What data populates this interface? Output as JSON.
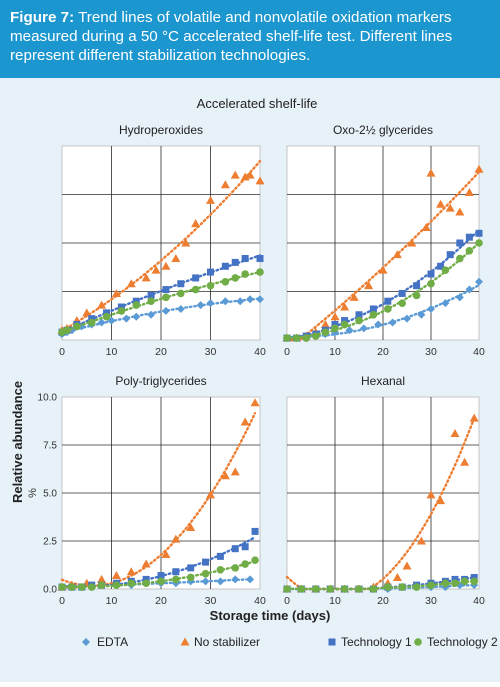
{
  "caption": {
    "label": "Figure 7:",
    "text": " Trend lines of volatile and nonvolatile oxidation markers measured during a 50 °C accelerated shelf-life test. Different lines represent different stabilization technologies."
  },
  "figure_title": "Accelerated shelf-life",
  "shared": {
    "ylabel": "Relative abundance",
    "xlabel": "Storage time (days)",
    "unit_label": "%"
  },
  "legend": [
    {
      "name": "EDTA",
      "color": "#5b9bd5",
      "marker": "diamond"
    },
    {
      "name": "No stabilizer",
      "color": "#ed7d31",
      "marker": "triangle"
    },
    {
      "name": "Technology 1",
      "color": "#4472c4",
      "marker": "square"
    },
    {
      "name": "Technology 2",
      "color": "#70ad47",
      "marker": "circle"
    }
  ],
  "chart_data": [
    {
      "type": "scatter",
      "title": "Hydroperoxides",
      "xlim": [
        0,
        40
      ],
      "xticks": [
        "0",
        "10",
        "20",
        "30",
        "40"
      ],
      "ylim": [
        0,
        10
      ],
      "yticks": [],
      "grid": true,
      "trendline": "dotted",
      "series": [
        {
          "name": "EDTA",
          "x": [
            0,
            1,
            2,
            4,
            6,
            8,
            10,
            13,
            15,
            18,
            21,
            24,
            28,
            30,
            33,
            36,
            38,
            40
          ],
          "y": [
            0.3,
            0.4,
            0.5,
            0.7,
            0.8,
            0.9,
            1.0,
            1.1,
            1.2,
            1.3,
            1.5,
            1.6,
            1.8,
            1.9,
            2.0,
            2.0,
            2.1,
            2.1
          ]
        },
        {
          "name": "No stabilizer",
          "x": [
            0,
            1,
            3,
            5,
            8,
            11,
            14,
            17,
            19,
            21,
            23,
            25,
            27,
            30,
            33,
            35,
            37,
            38,
            40
          ],
          "y": [
            0.5,
            0.6,
            1.0,
            1.4,
            1.8,
            2.4,
            2.9,
            3.2,
            3.6,
            3.8,
            4.2,
            5.0,
            6.0,
            7.2,
            8.0,
            8.5,
            8.4,
            8.5,
            8.2
          ]
        },
        {
          "name": "Technology 1",
          "x": [
            0,
            1,
            3,
            6,
            9,
            12,
            15,
            18,
            21,
            24,
            27,
            30,
            33,
            35,
            37,
            40
          ],
          "y": [
            0.4,
            0.5,
            0.8,
            1.1,
            1.4,
            1.7,
            2.0,
            2.3,
            2.6,
            2.9,
            3.2,
            3.5,
            3.8,
            4.0,
            4.2,
            4.2
          ]
        },
        {
          "name": "Technology 2",
          "x": [
            0,
            1,
            3,
            6,
            9,
            12,
            15,
            18,
            21,
            24,
            27,
            30,
            33,
            35,
            37,
            40
          ],
          "y": [
            0.4,
            0.5,
            0.7,
            0.9,
            1.2,
            1.5,
            1.8,
            2.0,
            2.2,
            2.4,
            2.6,
            2.8,
            3.0,
            3.2,
            3.4,
            3.5
          ]
        }
      ]
    },
    {
      "type": "scatter",
      "title": "Oxo-2½ glycerides",
      "xlim": [
        0,
        40
      ],
      "xticks": [
        "0",
        "10",
        "20",
        "30",
        "40"
      ],
      "ylim": [
        0,
        10
      ],
      "yticks": [],
      "grid": true,
      "trendline": "dotted",
      "series": [
        {
          "name": "EDTA",
          "x": [
            0,
            2,
            4,
            6,
            8,
            10,
            13,
            16,
            19,
            22,
            25,
            28,
            30,
            33,
            36,
            38,
            40
          ],
          "y": [
            0.1,
            0.1,
            0.1,
            0.2,
            0.3,
            0.4,
            0.5,
            0.6,
            0.8,
            0.9,
            1.1,
            1.3,
            1.6,
            1.9,
            2.2,
            2.6,
            3.0
          ]
        },
        {
          "name": "No stabilizer",
          "x": [
            0,
            2,
            4,
            6,
            8,
            10,
            12,
            14,
            17,
            20,
            23,
            26,
            29,
            30,
            32,
            34,
            36,
            38,
            40
          ],
          "y": [
            0.1,
            0.1,
            0.2,
            0.4,
            0.8,
            1.2,
            1.7,
            2.2,
            2.8,
            3.6,
            4.4,
            5.0,
            5.8,
            8.6,
            7.0,
            6.8,
            6.6,
            7.6,
            8.8
          ]
        },
        {
          "name": "Technology 1",
          "x": [
            0,
            2,
            4,
            6,
            8,
            10,
            12,
            15,
            18,
            21,
            24,
            27,
            30,
            32,
            34,
            36,
            38,
            40
          ],
          "y": [
            0.1,
            0.1,
            0.2,
            0.3,
            0.5,
            0.8,
            1.0,
            1.3,
            1.6,
            2.0,
            2.4,
            2.8,
            3.4,
            3.8,
            4.4,
            5.0,
            5.3,
            5.5
          ]
        },
        {
          "name": "Technology 2",
          "x": [
            0,
            2,
            4,
            6,
            8,
            10,
            12,
            15,
            18,
            21,
            24,
            27,
            30,
            33,
            36,
            38,
            40
          ],
          "y": [
            0.1,
            0.1,
            0.1,
            0.2,
            0.4,
            0.6,
            0.8,
            1.0,
            1.3,
            1.6,
            1.9,
            2.3,
            2.9,
            3.6,
            4.2,
            4.6,
            5.0
          ]
        }
      ]
    },
    {
      "type": "scatter",
      "title": "Poly-triglycerides",
      "xlim": [
        0,
        40
      ],
      "xticks": [
        "0",
        "10",
        "20",
        "30",
        "40"
      ],
      "ylim": [
        0,
        10
      ],
      "yticks": [
        "0.0",
        "2.5",
        "5.0",
        "7.5",
        "10.0"
      ],
      "ylabel": "%",
      "grid": true,
      "trendline": "dotted",
      "series": [
        {
          "name": "EDTA",
          "x": [
            0,
            2,
            4,
            6,
            8,
            11,
            14,
            17,
            20,
            23,
            26,
            29,
            32,
            35,
            38
          ],
          "y": [
            0.1,
            0.1,
            0.1,
            0.1,
            0.2,
            0.2,
            0.2,
            0.3,
            0.3,
            0.3,
            0.4,
            0.4,
            0.4,
            0.5,
            0.5
          ]
        },
        {
          "name": "No stabilizer",
          "x": [
            0,
            2,
            5,
            8,
            11,
            14,
            17,
            21,
            23,
            26,
            30,
            33,
            35,
            37,
            39
          ],
          "y": [
            0.1,
            0.2,
            0.3,
            0.5,
            0.7,
            0.9,
            1.3,
            1.8,
            2.6,
            3.2,
            4.9,
            5.9,
            6.1,
            8.7,
            9.7
          ]
        },
        {
          "name": "Technology 1",
          "x": [
            0,
            2,
            4,
            6,
            8,
            11,
            14,
            17,
            20,
            23,
            26,
            29,
            32,
            35,
            37,
            39
          ],
          "y": [
            0.1,
            0.1,
            0.1,
            0.2,
            0.2,
            0.3,
            0.4,
            0.5,
            0.7,
            0.9,
            1.1,
            1.4,
            1.7,
            2.1,
            2.2,
            3.0
          ]
        },
        {
          "name": "Technology 2",
          "x": [
            0,
            2,
            4,
            6,
            8,
            11,
            14,
            17,
            20,
            23,
            26,
            29,
            32,
            35,
            37,
            39
          ],
          "y": [
            0.1,
            0.1,
            0.1,
            0.1,
            0.2,
            0.2,
            0.3,
            0.3,
            0.4,
            0.5,
            0.6,
            0.8,
            1.0,
            1.1,
            1.3,
            1.5
          ]
        }
      ]
    },
    {
      "type": "scatter",
      "title": "Hexanal",
      "xlim": [
        0,
        40
      ],
      "xticks": [
        "0",
        "10",
        "20",
        "30",
        "40"
      ],
      "ylim": [
        0,
        10
      ],
      "yticks": [],
      "grid": true,
      "trendline": "dotted",
      "series": [
        {
          "name": "EDTA",
          "x": [
            0,
            3,
            6,
            9,
            12,
            15,
            18,
            21,
            24,
            27,
            30,
            33,
            36,
            39
          ],
          "y": [
            0.0,
            0.0,
            0.0,
            0.0,
            0.0,
            0.0,
            0.0,
            0.0,
            0.1,
            0.1,
            0.1,
            0.1,
            0.2,
            0.2
          ]
        },
        {
          "name": "No stabilizer",
          "x": [
            0,
            3,
            6,
            9,
            12,
            15,
            18,
            21,
            23,
            25,
            28,
            30,
            32,
            35,
            37,
            39
          ],
          "y": [
            0.0,
            0.0,
            0.0,
            0.0,
            0.0,
            0.0,
            0.1,
            0.3,
            0.6,
            1.2,
            2.5,
            4.9,
            4.6,
            8.1,
            6.6,
            8.9
          ]
        },
        {
          "name": "Technology 1",
          "x": [
            0,
            3,
            6,
            9,
            12,
            15,
            18,
            21,
            24,
            27,
            30,
            33,
            35,
            37,
            39
          ],
          "y": [
            0.0,
            0.0,
            0.0,
            0.0,
            0.0,
            0.0,
            0.0,
            0.1,
            0.1,
            0.2,
            0.3,
            0.4,
            0.5,
            0.5,
            0.6
          ]
        },
        {
          "name": "Technology 2",
          "x": [
            0,
            3,
            6,
            9,
            12,
            15,
            18,
            21,
            24,
            27,
            30,
            33,
            35,
            37,
            39
          ],
          "y": [
            0.0,
            0.0,
            0.0,
            0.0,
            0.0,
            0.0,
            0.0,
            0.1,
            0.1,
            0.1,
            0.2,
            0.3,
            0.3,
            0.4,
            0.4
          ]
        }
      ]
    }
  ]
}
